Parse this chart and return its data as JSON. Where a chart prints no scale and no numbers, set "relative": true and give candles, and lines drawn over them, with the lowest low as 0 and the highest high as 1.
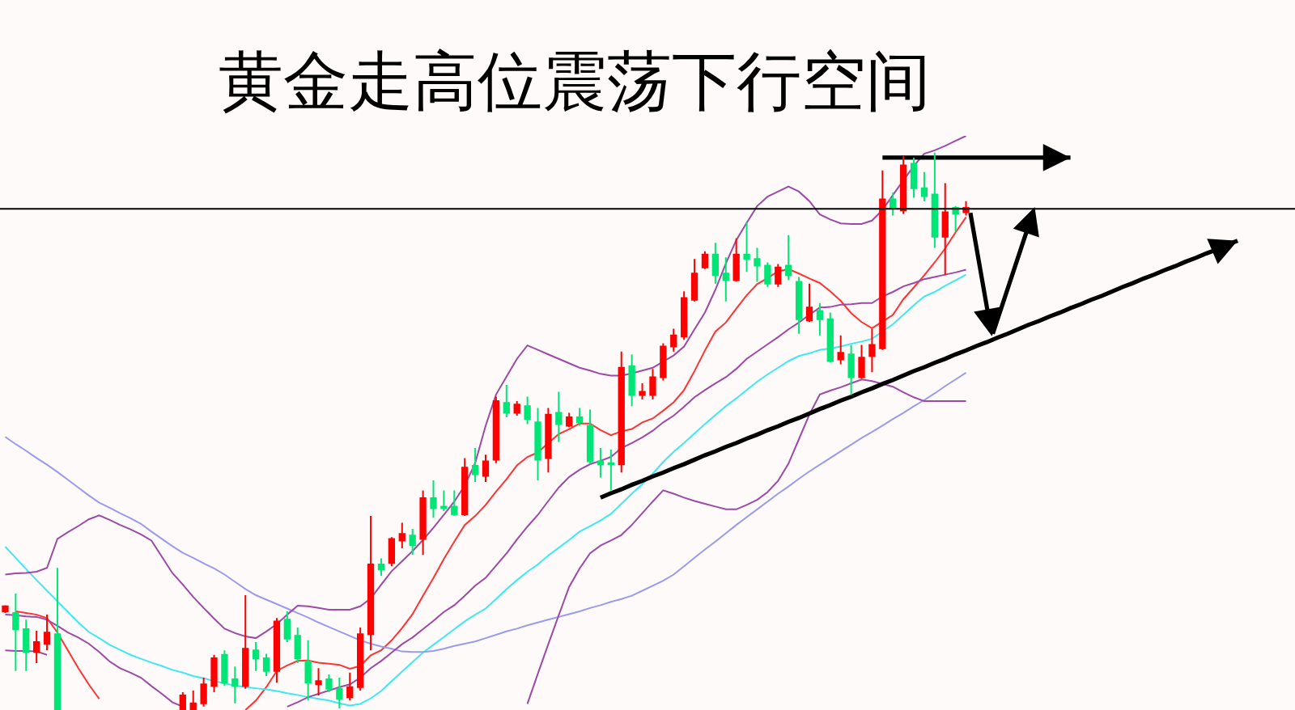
{
  "chart_data": {
    "type": "candlestick",
    "title": "黄金走高位震荡下行空间",
    "relative": true,
    "categories": [
      null,
      null,
      null,
      null,
      null,
      null,
      null,
      null,
      null,
      null,
      null,
      null,
      null,
      null,
      null,
      null,
      null,
      null,
      null,
      null,
      null,
      null,
      null,
      null,
      null,
      null,
      null,
      null,
      null,
      null,
      null,
      null,
      null,
      null,
      null,
      null,
      null,
      null,
      null,
      null,
      null,
      null,
      null,
      null,
      null,
      null,
      null,
      null,
      null,
      null,
      null,
      null,
      null,
      null,
      null,
      null,
      null,
      null,
      null,
      null,
      null,
      null,
      null,
      null,
      null,
      null,
      null,
      null,
      null,
      null,
      null,
      null,
      null,
      null,
      null,
      null,
      null,
      null,
      null,
      null,
      null,
      null,
      null,
      null,
      null,
      null,
      null,
      null,
      null,
      null,
      null,
      null,
      null,
      null,
      null,
      null,
      null,
      null,
      null,
      null,
      null,
      null,
      null,
      null,
      null,
      null,
      null,
      null,
      null,
      null,
      null,
      null,
      null,
      null,
      null,
      null,
      null,
      null,
      null,
      null,
      null,
      null,
      null,
      null
    ],
    "ohlc": [
      [
        0.177,
        0.188,
        0.174,
        0.186
      ],
      [
        0.174,
        0.209,
        0.07,
        0.145
      ],
      [
        0.145,
        0.162,
        0.07,
        0.104
      ],
      [
        0.104,
        0.142,
        0.084,
        0.122
      ],
      [
        0.119,
        0.171,
        0.107,
        0.139
      ],
      [
        0.136,
        0.255,
        0,
        0
      ],
      null,
      null,
      null,
      null,
      null,
      null,
      null,
      null,
      null,
      null,
      null,
      [
        0,
        0.032,
        0,
        0.026
      ],
      [
        0,
        0.035,
        0,
        0.012
      ],
      [
        0.012,
        0.058,
        0.006,
        0.046
      ],
      [
        0.043,
        0.099,
        0.032,
        0.093
      ],
      [
        0.099,
        0.107,
        0.043,
        0.049
      ],
      [
        0.055,
        0.078,
        0.012,
        0.043
      ],
      [
        0.043,
        0.206,
        0.038,
        0.11
      ],
      [
        0.107,
        0.122,
        0.07,
        0.093
      ],
      [
        0.093,
        0.101,
        0.061,
        0.07
      ],
      [
        0.07,
        0.165,
        0.049,
        0.159
      ],
      [
        0.162,
        0.177,
        0.122,
        0.128
      ],
      [
        0.133,
        0.148,
        0.084,
        0.093
      ],
      [
        0.087,
        0.125,
        0.017,
        0.049
      ],
      [
        0.046,
        0.075,
        0.026,
        0.052
      ],
      [
        0.055,
        0.064,
        0.032,
        0.038
      ],
      [
        0.038,
        0.058,
        0.003,
        0.02
      ],
      [
        0.023,
        0.067,
        0.017,
        0.041
      ],
      [
        0.041,
        0.148,
        0.035,
        0.136
      ],
      [
        0.136,
        0.348,
        0.107,
        0.261
      ],
      [
        0.261,
        0.272,
        0.241,
        0.252
      ],
      [
        0.264,
        0.31,
        0.258,
        0.307
      ],
      [
        0.304,
        0.336,
        0.29,
        0.316
      ],
      [
        0.313,
        0.325,
        0.278,
        0.296
      ],
      [
        0.307,
        0.394,
        0.278,
        0.38
      ],
      [
        0.38,
        0.412,
        0.345,
        0.362
      ],
      [
        0.365,
        0.394,
        0.357,
        0.362
      ],
      [
        0.365,
        0.394,
        0.348,
        0.351
      ],
      [
        0.351,
        0.452,
        0.348,
        0.435
      ],
      [
        0.438,
        0.47,
        0.409,
        0.423
      ],
      [
        0.42,
        0.458,
        0.409,
        0.446
      ],
      [
        0.449,
        0.562,
        0.443,
        0.554
      ],
      [
        0.551,
        0.583,
        0.525,
        0.533
      ],
      [
        0.533,
        0.554,
        0.528,
        0.548
      ],
      [
        0.545,
        0.562,
        0.513,
        0.522
      ],
      [
        0.516,
        0.542,
        0.412,
        0.449
      ],
      [
        0.452,
        0.542,
        0.426,
        0.53
      ],
      [
        0.533,
        0.571,
        0.481,
        0.513
      ],
      [
        0.51,
        0.533,
        0.507,
        0.525
      ],
      [
        0.525,
        0.542,
        0.51,
        0.516
      ],
      [
        0.51,
        0.539,
        0.441,
        0.446
      ],
      [
        0.446,
        0.47,
        0.417,
        0.441
      ],
      [
        0.443,
        0.467,
        0.394,
        0.441
      ],
      [
        0.441,
        0.643,
        0.426,
        0.614
      ],
      [
        0.617,
        0.638,
        0.545,
        0.565
      ],
      [
        0.565,
        0.586,
        0.557,
        0.571
      ],
      [
        0.565,
        0.612,
        0.557,
        0.597
      ],
      [
        0.597,
        0.658,
        0.591,
        0.652
      ],
      [
        0.652,
        0.684,
        0.643,
        0.672
      ],
      [
        0.67,
        0.751,
        0.664,
        0.739
      ],
      [
        0.736,
        0.809,
        0.733,
        0.783
      ],
      [
        0.794,
        0.823,
        0.791,
        0.817
      ],
      [
        0.817,
        0.838,
        0.765,
        0.78
      ],
      [
        0.783,
        0.812,
        0.733,
        0.771
      ],
      [
        0.771,
        0.846,
        0.768,
        0.817
      ],
      [
        0.817,
        0.875,
        0.786,
        0.809
      ],
      [
        0.809,
        0.829,
        0.768,
        0.797
      ],
      [
        0.797,
        0.803,
        0.759,
        0.765
      ],
      [
        0.765,
        0.8,
        0.759,
        0.794
      ],
      [
        0.797,
        0.852,
        0.771,
        0.78
      ],
      [
        0.768,
        0.777,
        0.675,
        0.701
      ],
      [
        0.699,
        0.765,
        0.696,
        0.722
      ],
      [
        0.716,
        0.73,
        0.672,
        0.701
      ],
      [
        0.701,
        0.713,
        0.623,
        0.626
      ],
      [
        0.629,
        0.672,
        0.62,
        0.641
      ],
      [
        0.638,
        0.655,
        0.565,
        0.597
      ],
      [
        0.597,
        0.655,
        0.594,
        0.632
      ],
      [
        0.635,
        0.684,
        0.606,
        0.655
      ],
      [
        0.649,
        0.968,
        0.646,
        0.916
      ],
      [
        0.916,
        0.928,
        0.887,
        0.901
      ],
      [
        0.896,
        0.994,
        0.89,
        0.977
      ],
      [
        0.98,
        0.991,
        0.919,
        0.936
      ],
      [
        0.936,
        0.965,
        0.913,
        0.922
      ],
      [
        0.925,
        1,
        0.829,
        0.849
      ],
      [
        0.849,
        0.945,
        0.78,
        0.893
      ],
      [
        0.901,
        0.904,
        0.858,
        0.89
      ],
      [
        0.893,
        0.913,
        0.887,
        0.901
      ],
      null,
      null,
      null,
      null,
      null,
      null,
      null,
      null,
      null,
      null,
      null,
      null,
      null,
      null,
      null,
      null,
      null,
      null,
      null,
      null,
      null,
      null,
      null,
      null,
      null,
      null,
      null,
      null,
      null,
      null,
      null
    ],
    "colors": [
      "#ff0000",
      "#00e676",
      "#00e676",
      "#ff0000",
      "#ff0000",
      "#00e676",
      null,
      null,
      null,
      null,
      null,
      null,
      null,
      null,
      null,
      null,
      null,
      "#ff0000",
      "#ff0000",
      "#ff0000",
      "#ff0000",
      "#00e676",
      "#00e676",
      "#ff0000",
      "#00e676",
      "#00e676",
      "#ff0000",
      "#00e676",
      "#00e676",
      "#00e676",
      "#ff0000",
      "#00e676",
      "#00e676",
      "#ff0000",
      "#ff0000",
      "#ff0000",
      "#00e676",
      "#ff0000",
      "#ff0000",
      "#00e676",
      "#ff0000",
      "#00e676",
      "#00e676",
      "#00e676",
      "#ff0000",
      "#00e676",
      "#ff0000",
      "#ff0000",
      "#00e676",
      "#ff0000",
      "#00e676",
      "#00e676",
      "#ff0000",
      "#00e676",
      "#ff0000",
      "#00e676",
      "#00e676",
      "#00e676",
      "#00e676",
      "#ff0000",
      "#00e676",
      "#ff0000",
      "#ff0000",
      "#ff0000",
      "#ff0000",
      "#ff0000",
      "#ff0000",
      "#ff0000",
      "#00e676",
      "#00e676",
      "#ff0000",
      "#00e676",
      "#00e676",
      "#00e676",
      "#ff0000",
      "#00e676",
      "#00e676",
      "#ff0000",
      "#00e676",
      "#00e676",
      "#ff0000",
      "#00e676",
      "#ff0000",
      "#ff0000",
      "#ff0000",
      "#00e676",
      "#ff0000",
      "#00e676",
      "#00e676",
      "#00e676",
      "#ff0000",
      "#00e676",
      "#ff0000",
      null,
      null,
      null,
      null,
      null,
      null,
      null,
      null,
      null,
      null,
      null,
      null,
      null,
      null,
      null,
      null,
      null,
      null,
      null,
      null,
      null,
      null,
      null,
      null,
      null,
      null,
      null,
      null,
      null,
      null,
      null
    ],
    "series": [
      {
        "type": "line",
        "color": "#ff3333",
        "values": [
          null,
          0.177,
          0.174,
          0.171,
          0.165,
          0.139,
          0.107,
          0.075,
          0.046,
          0.02,
          null,
          null,
          null,
          null,
          null,
          null,
          null,
          null,
          null,
          null,
          null,
          null,
          null,
          0,
          0.017,
          0.041,
          0.07,
          0.08,
          0.088,
          0.089,
          0.085,
          0.083,
          0.081,
          0.074,
          0.079,
          0.098,
          0.107,
          0.125,
          0.147,
          0.172,
          0.205,
          0.237,
          0.271,
          0.302,
          0.332,
          0.348,
          0.368,
          0.392,
          0.414,
          0.439,
          0.454,
          0.462,
          0.479,
          0.495,
          0.504,
          0.514,
          0.514,
          0.502,
          0.493,
          0.5,
          0.504,
          0.516,
          0.523,
          0.537,
          0.552,
          0.574,
          0.608,
          0.645,
          0.679,
          0.695,
          0.72,
          0.744,
          0.764,
          0.775,
          0.787,
          0.791,
          0.783,
          0.774,
          0.766,
          0.751,
          0.734,
          0.712,
          0.696,
          0.685,
          0.697,
          0.709,
          0.737,
          0.758,
          0.78,
          0.803,
          0.828,
          0.857,
          0.884,
          null,
          null,
          null,
          null,
          null,
          null,
          null,
          null,
          null,
          null,
          null,
          null,
          null,
          null,
          null,
          null,
          null,
          null,
          null,
          null,
          null,
          null,
          null,
          null,
          null,
          null,
          null,
          null,
          null,
          null,
          null
        ]
      },
      {
        "type": "line",
        "color": "#3ee8f2",
        "values": [
          0.293,
          0.273,
          0.253,
          0.233,
          0.214,
          0.195,
          0.176,
          0.157,
          0.14,
          0.129,
          0.117,
          0.108,
          0.099,
          0.092,
          0.085,
          0.079,
          0.072,
          0.067,
          0.061,
          0.057,
          0.052,
          0.048,
          0.044,
          0.041,
          0.039,
          0.037,
          0.034,
          0.03,
          0.027,
          0.023,
          0.02,
          0.017,
          0.012,
          0.008,
          0.011,
          0.021,
          0.034,
          0.052,
          0.069,
          0.086,
          0.103,
          0.117,
          0.131,
          0.145,
          0.159,
          0.171,
          0.182,
          0.199,
          0.217,
          0.233,
          0.248,
          0.261,
          0.277,
          0.291,
          0.305,
          0.32,
          0.33,
          0.34,
          0.352,
          0.37,
          0.388,
          0.405,
          0.424,
          0.445,
          0.463,
          0.479,
          0.496,
          0.513,
          0.529,
          0.545,
          0.559,
          0.574,
          0.589,
          0.602,
          0.614,
          0.626,
          0.635,
          0.64,
          0.646,
          0.649,
          0.652,
          0.657,
          0.661,
          0.666,
          0.679,
          0.692,
          0.709,
          0.726,
          0.742,
          0.75,
          0.761,
          0.771,
          0.781,
          null,
          null,
          null,
          null,
          null,
          null,
          null,
          null,
          null,
          null,
          null,
          null,
          null,
          null,
          null,
          null,
          null,
          null,
          null,
          null,
          null,
          null,
          null,
          null,
          null,
          null,
          null,
          null,
          null,
          null,
          null
        ]
      },
      {
        "type": "line",
        "color": "#9a9aee",
        "values": [
          0.49,
          0.477,
          0.465,
          0.452,
          0.44,
          0.427,
          0.413,
          0.399,
          0.385,
          0.372,
          0.363,
          0.353,
          0.344,
          0.334,
          0.32,
          0.307,
          0.294,
          0.282,
          0.273,
          0.263,
          0.254,
          0.243,
          0.23,
          0.217,
          0.206,
          0.198,
          0.19,
          0.182,
          0.174,
          0.166,
          0.157,
          0.149,
          0.141,
          0.133,
          0.125,
          0.119,
          0.114,
          0.11,
          0.105,
          0.104,
          0.104,
          0.106,
          0.11,
          0.115,
          0.119,
          0.123,
          0.129,
          0.135,
          0.141,
          0.146,
          0.152,
          0.157,
          0.162,
          0.167,
          0.172,
          0.177,
          0.183,
          0.188,
          0.194,
          0.199,
          0.205,
          0.214,
          0.223,
          0.232,
          0.243,
          0.258,
          0.273,
          0.288,
          0.302,
          0.317,
          0.332,
          0.346,
          0.36,
          0.374,
          0.388,
          0.401,
          0.415,
          0.428,
          0.44,
          0.452,
          0.464,
          0.476,
          0.488,
          0.499,
          0.51,
          0.522,
          0.533,
          0.545,
          0.556,
          0.568,
          0.581,
          0.593,
          0.605,
          null,
          null,
          null,
          null,
          null,
          null,
          null,
          null,
          null,
          null,
          null,
          null,
          null,
          null,
          null,
          null,
          null,
          null,
          null,
          null,
          null,
          null,
          null,
          null,
          null,
          null,
          null,
          null,
          null,
          null,
          null
        ]
      },
      {
        "type": "line",
        "color": "#9c4aa6",
        "values": [
          0.243,
          0.245,
          0.246,
          0.248,
          0.255,
          0.307,
          0.319,
          0.33,
          0.342,
          0.349,
          0.341,
          0.332,
          0.324,
          0.315,
          0.304,
          0.275,
          0.246,
          0.225,
          0.203,
          0.183,
          0.164,
          0.146,
          0.138,
          0.132,
          0.129,
          0.141,
          0.154,
          0.171,
          0.187,
          0.186,
          0.183,
          0.18,
          0.18,
          0.18,
          0.186,
          0.2,
          0.225,
          0.249,
          0.267,
          0.285,
          0.305,
          0.327,
          0.35,
          0.374,
          0.403,
          0.443,
          0.51,
          0.566,
          0.598,
          0.63,
          0.654,
          0.646,
          0.638,
          0.63,
          0.622,
          0.614,
          0.609,
          0.603,
          0.6,
          0.6,
          0.604,
          0.609,
          0.614,
          0.625,
          0.636,
          0.652,
          0.683,
          0.713,
          0.754,
          0.801,
          0.843,
          0.874,
          0.904,
          0.921,
          0.93,
          0.939,
          0.93,
          0.913,
          0.889,
          0.88,
          0.873,
          0.872,
          0.872,
          0.878,
          0.897,
          0.924,
          0.95,
          0.976,
          0.998,
          1.004,
          1.012,
          1.021,
          1.03,
          null,
          null,
          null,
          null,
          null,
          null,
          null,
          null,
          null,
          null,
          null,
          null,
          null,
          null,
          null,
          null,
          null,
          null,
          null,
          null,
          null,
          null,
          null,
          null,
          null,
          null,
          null,
          null,
          null,
          null,
          null
        ]
      },
      {
        "type": "line",
        "color": "#9c4aa6",
        "values": [
          0.171,
          0.17,
          0.168,
          0.167,
          0.162,
          0.151,
          0.139,
          0.13,
          0.119,
          0.104,
          0.087,
          0.075,
          0.067,
          0.058,
          0.043,
          0.029,
          0.014,
          0.006,
          null,
          null,
          null,
          null,
          null,
          null,
          null,
          null,
          null,
          0.006,
          0.014,
          0.023,
          0.029,
          0.035,
          0.041,
          0.046,
          0.058,
          0.075,
          0.088,
          0.103,
          0.118,
          0.13,
          0.145,
          0.16,
          0.176,
          0.188,
          0.205,
          0.223,
          0.237,
          0.259,
          0.281,
          0.306,
          0.329,
          0.35,
          0.375,
          0.399,
          0.418,
          0.431,
          0.441,
          0.447,
          0.454,
          0.47,
          0.479,
          0.489,
          0.501,
          0.516,
          0.528,
          0.544,
          0.561,
          0.574,
          0.586,
          0.597,
          0.612,
          0.63,
          0.643,
          0.656,
          0.669,
          0.683,
          0.695,
          0.709,
          0.722,
          0.723,
          0.727,
          0.728,
          0.73,
          0.73,
          0.742,
          0.75,
          0.76,
          0.766,
          0.773,
          0.777,
          0.781,
          0.785,
          0.79,
          null,
          null,
          null,
          null,
          null,
          null,
          null,
          null,
          null,
          null,
          null,
          null,
          null,
          null,
          null,
          null,
          null,
          null,
          null,
          null,
          null,
          null,
          null,
          null,
          null,
          null,
          null,
          null,
          null,
          null,
          null
        ]
      },
      {
        "type": "line",
        "color": "#9c4aa6",
        "values": [
          0.107,
          0.106,
          0.106,
          0.105,
          0.099,
          null,
          null,
          null,
          null,
          null,
          null,
          null,
          null,
          null,
          null,
          null,
          null,
          null,
          null,
          null,
          null,
          null,
          null,
          null,
          null,
          null,
          null,
          null,
          null,
          null,
          null,
          null,
          null,
          null,
          null,
          null,
          null,
          null,
          null,
          null,
          null,
          null,
          null,
          null,
          null,
          null,
          null,
          null,
          null,
          null,
          0.011,
          0.065,
          0.118,
          0.17,
          0.221,
          0.254,
          0.281,
          0.295,
          0.304,
          0.314,
          0.332,
          0.353,
          0.374,
          0.394,
          0.388,
          0.381,
          0.375,
          0.37,
          0.365,
          0.36,
          0.36,
          0.368,
          0.377,
          0.391,
          0.411,
          0.442,
          0.486,
          0.53,
          0.566,
          0.573,
          0.579,
          0.586,
          0.593,
          0.59,
          0.585,
          0.58,
          0.57,
          0.561,
          0.554,
          0.554,
          0.554,
          0.554,
          0.554,
          null,
          null,
          null,
          null,
          null,
          null,
          null,
          null,
          null,
          null,
          null,
          null,
          null,
          null,
          null,
          null,
          null,
          null,
          null,
          null,
          null,
          null,
          null,
          null,
          null,
          null,
          null,
          null,
          null,
          null,
          null
        ]
      },
      {
        "type": "line",
        "color": "#000000",
        "values": [
          null,
          null,
          null,
          null,
          null,
          null,
          null,
          null,
          null,
          null,
          null,
          null,
          null,
          null,
          null,
          null,
          null,
          null,
          null,
          null,
          null,
          null,
          null,
          null,
          null,
          null,
          null,
          null,
          null,
          null,
          null,
          null,
          null,
          null,
          null,
          null,
          null,
          null,
          null,
          null,
          null,
          null,
          null,
          null,
          null,
          null,
          null,
          null,
          null,
          null,
          null,
          null,
          null,
          null,
          null,
          null,
          null,
          null,
          null,
          null,
          null,
          null,
          null,
          null,
          null,
          null,
          null,
          null,
          null,
          null,
          null,
          null,
          null,
          null,
          null,
          null,
          null,
          null,
          null,
          null,
          null,
          null,
          null,
          null,
          0.991,
          0.991,
          0.991,
          0.991,
          0.991,
          0.991,
          0.991,
          0.991,
          0.991,
          0.991,
          0.991,
          0.991,
          0.991,
          0.991,
          0.991,
          0.991,
          0.991,
          0.991,
          0.991,
          null,
          null,
          null,
          null,
          null,
          null,
          null,
          null,
          null,
          null,
          null,
          null,
          null,
          null,
          null,
          null,
          null,
          null,
          null,
          null,
          null
        ]
      },
      {
        "type": "line",
        "color": "#000000",
        "values": [
          null,
          null,
          null,
          null,
          null,
          null,
          null,
          null,
          null,
          null,
          null,
          null,
          null,
          null,
          null,
          null,
          null,
          null,
          null,
          null,
          null,
          null,
          null,
          null,
          null,
          null,
          null,
          null,
          null,
          null,
          null,
          null,
          null,
          null,
          null,
          null,
          null,
          null,
          null,
          null,
          null,
          null,
          null,
          null,
          null,
          null,
          null,
          null,
          null,
          null,
          null,
          null,
          null,
          null,
          null,
          null,
          null,
          0.381,
          0.389,
          0.396,
          0.404,
          0.411,
          0.419,
          0.426,
          0.434,
          0.441,
          0.449,
          0.457,
          0.464,
          0.472,
          0.479,
          0.487,
          0.494,
          0.502,
          0.509,
          0.517,
          0.524,
          0.532,
          0.54,
          0.547,
          0.555,
          0.562,
          0.57,
          0.577,
          0.585,
          0.592,
          0.6,
          0.608,
          0.615,
          0.623,
          0.63,
          0.638,
          0.645,
          0.653,
          0.66,
          0.668,
          0.675,
          0.683,
          0.691,
          0.698,
          0.706,
          0.713,
          0.721,
          0.728,
          0.736,
          0.743,
          0.751,
          0.759,
          0.766,
          0.774,
          0.781,
          0.789,
          0.796,
          0.804,
          0.811,
          0.819,
          0.826,
          0.834,
          0.842,
          null,
          null,
          null,
          null,
          null
        ]
      }
    ],
    "ref_lines": [
      {
        "axis": "y",
        "value": 0.899,
        "color": "#000000"
      }
    ]
  }
}
